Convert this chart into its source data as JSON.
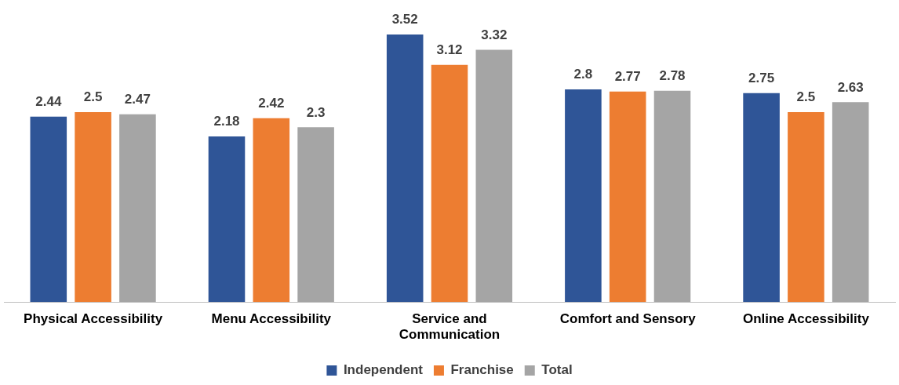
{
  "chart_data": {
    "type": "bar",
    "categories": [
      "Physical Accessibility",
      "Menu Accessibility",
      "Service and Communication",
      "Comfort and Sensory",
      "Online Accessibility"
    ],
    "series": [
      {
        "name": "Independent",
        "color": "#2f5597",
        "values": [
          2.44,
          2.18,
          3.52,
          2.8,
          2.75
        ]
      },
      {
        "name": "Franchise",
        "color": "#ed7d31",
        "values": [
          2.5,
          2.42,
          3.12,
          2.77,
          2.5
        ]
      },
      {
        "name": "Total",
        "color": "#a5a5a5",
        "values": [
          2.47,
          2.3,
          3.32,
          2.78,
          2.63
        ]
      }
    ],
    "data_labels": true,
    "grid": false,
    "legend": "bottom",
    "tick_labels": "x"
  }
}
